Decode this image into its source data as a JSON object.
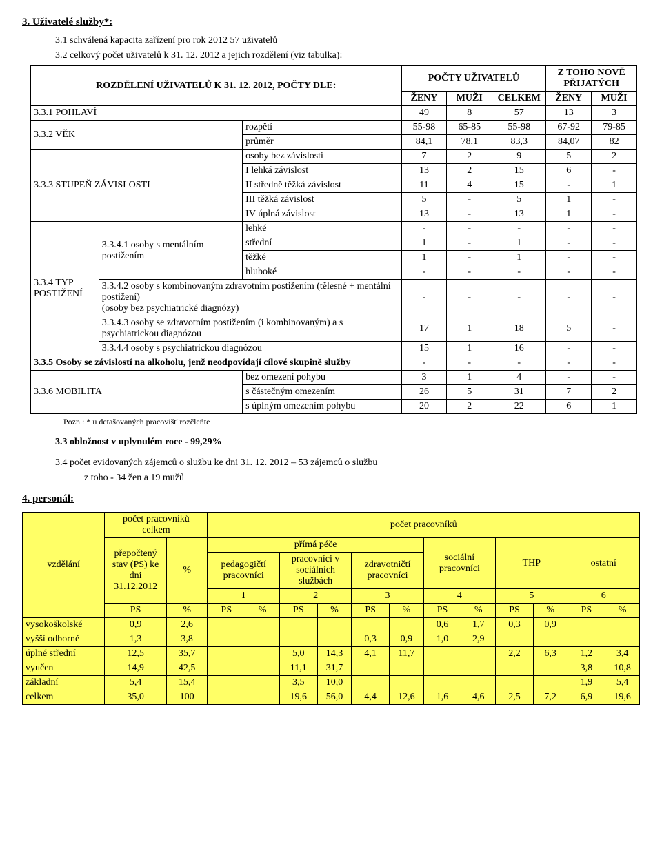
{
  "h3": "3.   Uživatelé služby*:",
  "l31": "3.1 schválená kapacita zařízení pro rok 2012 57 uživatelů",
  "l32a": "3.2 celkový počet uživatelů k 31. 12. 2012 a jejich rozdělení (viz tabulka):",
  "t1": {
    "header_main": "ROZDĚLENÍ UŽIVATELŮ K 31. 12. 2012, POČTY DLE:",
    "header_pocty": "POČTY UŽIVATELŮ",
    "header_nove": "Z TOHO NOVĚ PŘIJATÝCH",
    "zeny": "ŽENY",
    "muzi": "MUŽI",
    "celkem": "CELKEM",
    "r331": "3.3.1 POHLAVÍ",
    "r331v": [
      "49",
      "8",
      "57",
      "13",
      "3"
    ],
    "r332": "3.3.2 VĚK",
    "r332a_lbl": "rozpětí",
    "r332a": [
      "55-98",
      "65-85",
      "55-98",
      "67-92",
      "79-85"
    ],
    "r332b_lbl": "průměr",
    "r332b": [
      "84,1",
      "78,1",
      "83,3",
      "84,07",
      "82"
    ],
    "r333": "3.3.3 STUPEŇ ZÁVISLOSTI",
    "r333rows": [
      {
        "lbl": "osoby bez závislosti",
        "v": [
          "7",
          "2",
          "9",
          "5",
          "2"
        ]
      },
      {
        "lbl": "I   lehká závislost",
        "v": [
          "13",
          "2",
          "15",
          "6",
          "-"
        ]
      },
      {
        "lbl": "II  středně těžká závislost",
        "v": [
          "11",
          "4",
          "15",
          "-",
          "1"
        ]
      },
      {
        "lbl": "III těžká závislost",
        "v": [
          "5",
          "-",
          "5",
          "1",
          "-"
        ]
      },
      {
        "lbl": "IV úplná závislost",
        "v": [
          "13",
          "-",
          "13",
          "1",
          "-"
        ]
      }
    ],
    "r334": "3.3.4 TYP POSTIŽENÍ",
    "r3341": "3.3.4.1 osoby s mentálním postižením",
    "r3341rows": [
      {
        "lbl": "lehké",
        "v": [
          "-",
          "-",
          "-",
          "-",
          "-"
        ]
      },
      {
        "lbl": "střední",
        "v": [
          "1",
          "-",
          "1",
          "-",
          "-"
        ]
      },
      {
        "lbl": "těžké",
        "v": [
          "1",
          "-",
          "1",
          "-",
          "-"
        ]
      },
      {
        "lbl": "hluboké",
        "v": [
          "-",
          "-",
          "-",
          "-",
          "-"
        ]
      }
    ],
    "r3342_lbl": "3.3.4.2 osoby s kombinovaným zdravotním postižením (tělesné + mentální postižení)\n(osoby bez psychiatrické diagnózy)",
    "r3342": [
      "-",
      "-",
      "-",
      "-",
      "-"
    ],
    "r3343_lbl": "3.3.4.3 osoby se zdravotním postižením (i kombinovaným) a s psychiatrickou diagnózou",
    "r3343": [
      "17",
      "1",
      "18",
      "5",
      "-"
    ],
    "r3344_lbl": "3.3.4.4 osoby s psychiatrickou diagnózou",
    "r3344": [
      "15",
      "1",
      "16",
      "-",
      "-"
    ],
    "r335_lbl": "3.3.5 Osoby se závislostí na alkoholu, jenž neodpovídají cílové skupině služby",
    "r335": [
      "-",
      "-",
      "-",
      "-",
      "-"
    ],
    "r336": "3.3.6 MOBILITA",
    "r336rows": [
      {
        "lbl": "bez omezení pohybu",
        "v": [
          "3",
          "1",
          "4",
          "-",
          "-"
        ]
      },
      {
        "lbl": "s částečným omezením",
        "v": [
          "26",
          "5",
          "31",
          "7",
          "2"
        ]
      },
      {
        "lbl": "s úplným omezením pohybu",
        "v": [
          "20",
          "2",
          "22",
          "6",
          "1"
        ]
      }
    ]
  },
  "foot1": "Pozn.:   * u detašovaných pracovišť rozčleňte",
  "l33": "3.3 obložnost v uplynulém roce  - 99,29%",
  "l34a": "3.4 počet evidovaných zájemců o službu ke dni 31. 12. 2012 – 53 zájemců o službu",
  "l34b": "z toho  - 34 žen a 19 mužů",
  "h4": "4.   personál:",
  "t2": {
    "c_vzd": "vzdělání",
    "c_pc_celkem": "počet pracovníků celkem",
    "c_pc": "počet pracovníků",
    "c_pp": "přímá péče",
    "c_prep": "přepočtený stav (PS) ke dni 31.12.2012",
    "c_pct": "%",
    "c_ped": "pedagogičtí pracovníci",
    "c_soc": "pracovníci v sociálních službách",
    "c_zdr": "zdravotničtí pracovníci",
    "c_socp": "sociální pracovníci",
    "c_thp": "THP",
    "c_ost": "ostatní",
    "nums": [
      "1",
      "2",
      "3",
      "4",
      "5",
      "6"
    ],
    "ps": "PS",
    "rows": [
      {
        "lbl": "vysokoškolské",
        "v": [
          "0,9",
          "2,6",
          "",
          "",
          "",
          "",
          "",
          "",
          "0,6",
          "1,7",
          "0,3",
          "0,9",
          "",
          ""
        ]
      },
      {
        "lbl": "vyšší odborné",
        "v": [
          "1,3",
          "3,8",
          "",
          "",
          "",
          "",
          "0,3",
          "0,9",
          "1,0",
          "2,9",
          "",
          "",
          "",
          ""
        ]
      },
      {
        "lbl": "úplné střední",
        "v": [
          "12,5",
          "35,7",
          "",
          "",
          "5,0",
          "14,3",
          "4,1",
          "11,7",
          "",
          "",
          "2,2",
          "6,3",
          "1,2",
          "3,4"
        ]
      },
      {
        "lbl": "vyučen",
        "v": [
          "14,9",
          "42,5",
          "",
          "",
          "11,1",
          "31,7",
          "",
          "",
          "",
          "",
          "",
          "",
          "3,8",
          "10,8"
        ]
      },
      {
        "lbl": "základní",
        "v": [
          "5,4",
          "15,4",
          "",
          "",
          "3,5",
          "10,0",
          "",
          "",
          "",
          "",
          "",
          "",
          "1,9",
          "5,4"
        ]
      },
      {
        "lbl": "celkem",
        "v": [
          "35,0",
          "100",
          "",
          "",
          "19,6",
          "56,0",
          "4,4",
          "12,6",
          "1,6",
          "4,6",
          "2,5",
          "7,2",
          "6,9",
          "19,6"
        ]
      }
    ]
  }
}
